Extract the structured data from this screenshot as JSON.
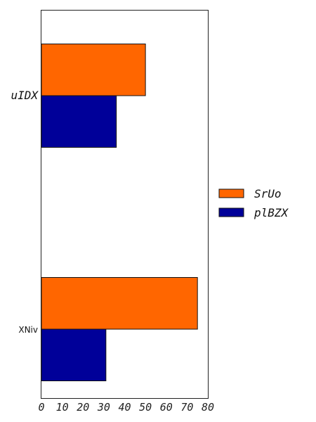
{
  "chart_data": {
    "type": "bar",
    "orientation": "horizontal",
    "categories": [
      "uIDX",
      "XNiv"
    ],
    "series": [
      {
        "name": "SrUo",
        "values": [
          50,
          75
        ],
        "color": "#ff6600"
      },
      {
        "name": "plBZX",
        "values": [
          36,
          31
        ],
        "color": "#000099"
      }
    ],
    "xlim": [
      0,
      80
    ],
    "xticks": [
      "0",
      "10",
      "20",
      "30",
      "40",
      "50",
      "60",
      "70",
      "80"
    ],
    "grid": false,
    "legend_position": "right"
  }
}
